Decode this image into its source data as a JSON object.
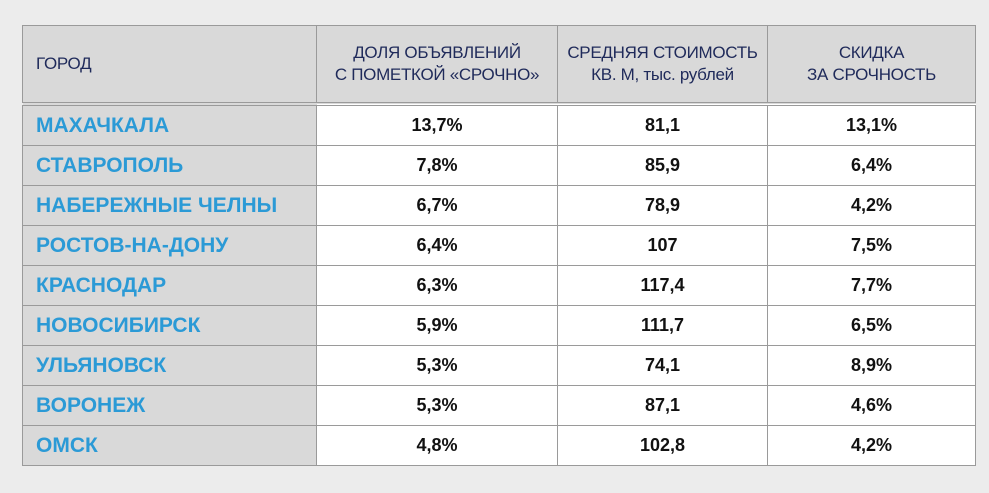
{
  "table": {
    "header": [
      "ГОРОД",
      "ДОЛЯ ОБЪЯВЛЕНИЙ\nС ПОМЕТКОЙ «СРОЧНО»",
      "СРЕДНЯЯ СТОИМОСТЬ\nКВ. М, тыс. рублей",
      "СКИДКА\nЗА СРОЧНОСТЬ"
    ],
    "rows": [
      [
        "МАХАЧКАЛА",
        "13,7%",
        "81,1",
        "13,1%"
      ],
      [
        "СТАВРОПОЛЬ",
        "7,8%",
        "85,9",
        "6,4%"
      ],
      [
        "НАБЕРЕЖНЫЕ ЧЕЛНЫ",
        "6,7%",
        "78,9",
        "4,2%"
      ],
      [
        "РОСТОВ-НА-ДОНУ",
        "6,4%",
        "107",
        "7,5%"
      ],
      [
        "КРАСНОДАР",
        "6,3%",
        "117,4",
        "7,7%"
      ],
      [
        "НОВОСИБИРСК",
        "5,9%",
        "111,7",
        "6,5%"
      ],
      [
        "УЛЬЯНОВСК",
        "5,3%",
        "74,1",
        "8,9%"
      ],
      [
        "ВОРОНЕЖ",
        "5,3%",
        "87,1",
        "4,6%"
      ],
      [
        "ОМСК",
        "4,8%",
        "102,8",
        "4,2%"
      ]
    ]
  }
}
